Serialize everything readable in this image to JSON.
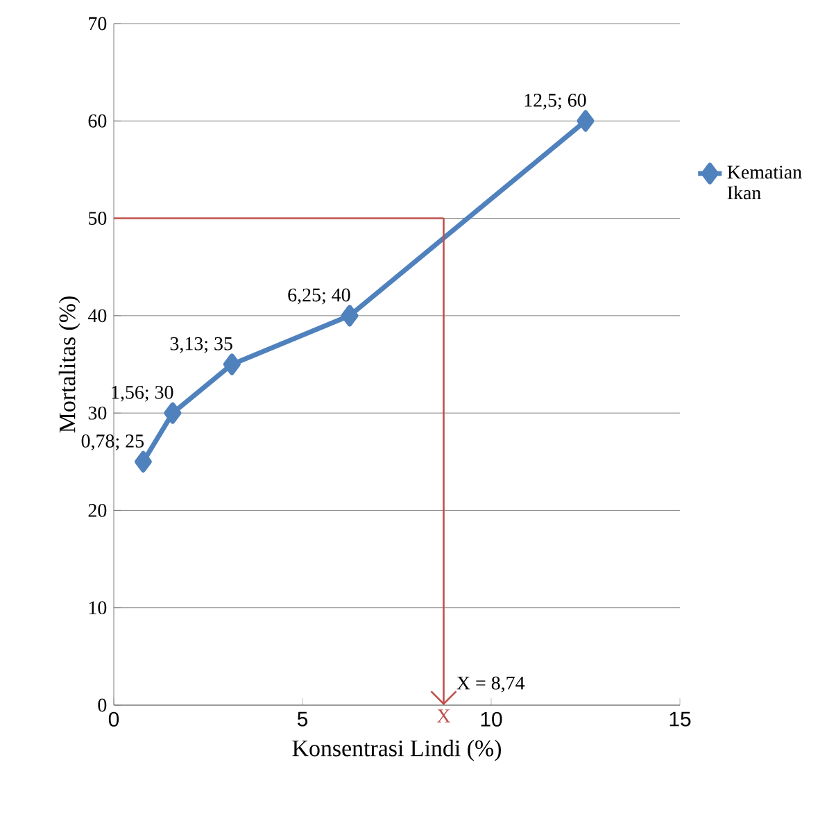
{
  "chart_data": {
    "type": "line",
    "xlabel": "Konsentrasi Lindi (%)",
    "ylabel": "Mortalitas (%)",
    "x": [
      0.78,
      1.56,
      3.13,
      6.25,
      12.5
    ],
    "series": [
      {
        "name": "Kematian Ikan",
        "color": "#4f81bd",
        "values": [
          25,
          30,
          35,
          40,
          60
        ],
        "value_labels": [
          "0,78; 25",
          "1,56; 30",
          "3,13; 35",
          "6,25; 40",
          "12,5; 60"
        ]
      }
    ],
    "xlim": [
      0,
      15
    ],
    "xticks": [
      0,
      5,
      10,
      15
    ],
    "ylim": [
      0,
      70
    ],
    "yticks": [
      0,
      10,
      20,
      30,
      40,
      50,
      60,
      70
    ],
    "grid": "y",
    "legend": "right",
    "marker": "diamond",
    "line_style": "solid",
    "ref_lines": [
      {
        "axis": "y",
        "value": 50,
        "color": "#c0504d"
      },
      {
        "axis": "x",
        "value": 8.74,
        "color": "#c0504d",
        "label": "X"
      }
    ],
    "annotations": [
      {
        "text": "X = 8,74",
        "x": 8.74,
        "y": 0
      }
    ]
  }
}
